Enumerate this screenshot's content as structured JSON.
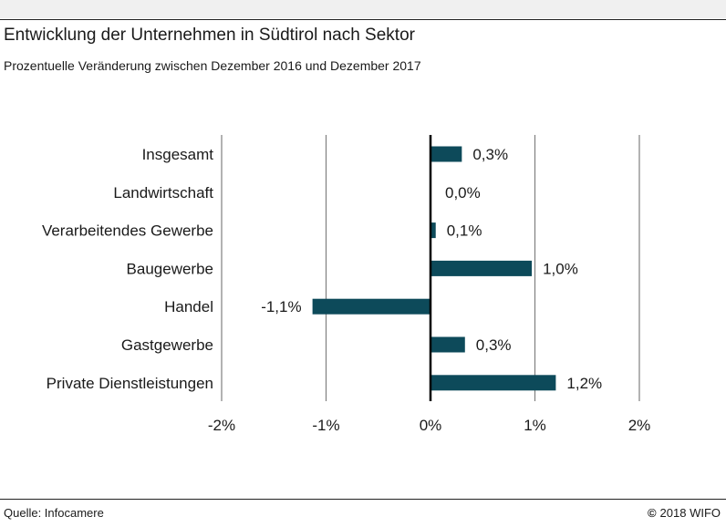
{
  "title": "Entwicklung der Unternehmen in Südtirol nach Sektor",
  "subtitle": "Prozentuelle Veränderung zwischen Dezember 2016 und Dezember 2017",
  "source": "Quelle: Infocamere",
  "copyright_symbol": "©",
  "copyright_text": "2018 WIFO",
  "colors": {
    "bar": "#0d4a5a",
    "grid": "#808080",
    "zero_line": "#000000"
  },
  "chart_data": {
    "type": "bar",
    "orientation": "horizontal",
    "categories": [
      "Insgesamt",
      "Landwirtschaft",
      "Verarbeitendes Gewerbe",
      "Baugewerbe",
      "Handel",
      "Gastgewerbe",
      "Private Dienstleistungen"
    ],
    "values": [
      0.3,
      0.0,
      0.05,
      0.97,
      -1.13,
      0.33,
      1.2
    ],
    "data_labels": [
      "0,3%",
      "0,0%",
      "0,1%",
      "1,0%",
      "-1,1%",
      "0,3%",
      "1,2%"
    ],
    "xlim": [
      -2,
      2
    ],
    "xticks": [
      -2,
      -1,
      0,
      1,
      2
    ],
    "xtick_labels": [
      "-2%",
      "-1%",
      "0%",
      "1%",
      "2%"
    ],
    "grid": "vertical",
    "legend": "none"
  }
}
